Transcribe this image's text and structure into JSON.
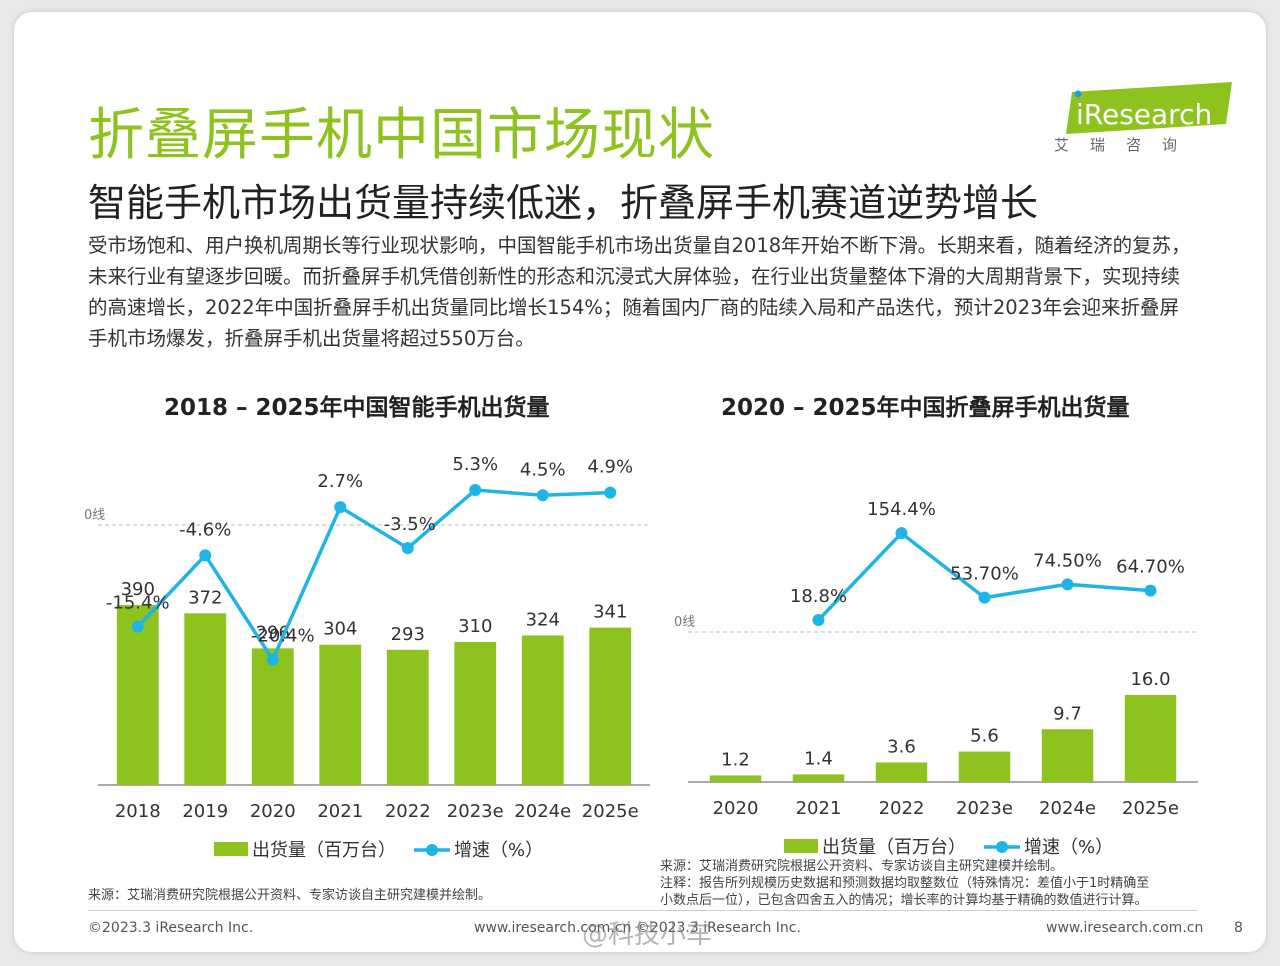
{
  "page": {
    "title": "折叠屏手机中国市场现状",
    "subtitle": "智能手机市场出货量持续低迷，折叠屏手机赛道逆势增长",
    "body": "受市场饱和、用户换机周期长等行业现状影响，中国智能手机市场出货量自2018年开始不断下滑。长期来看，随着经济的复苏，未来行业有望逐步回暖。而折叠屏手机凭借创新性的形态和沉浸式大屏体验，在行业出货量整体下滑的大周期背景下，实现持续的高速增长，2022年中国折叠屏手机出货量同比增长154%；随着国内厂商的陆续入局和产品迭代，预计2023年会迎来折叠屏手机市场爆发，折叠屏手机出货量将超过550万台。",
    "logo_text": "iResearch",
    "logo_cn": "艾瑞咨询",
    "brand_color": "#8dc21f",
    "line_color": "#1fb4e6"
  },
  "chart_data": [
    {
      "type": "bar",
      "title": "2018 – 2025年中国智能手机出货量",
      "categories": [
        "2018",
        "2019",
        "2020",
        "2021",
        "2022",
        "2023e",
        "2024e",
        "2025e"
      ],
      "series": [
        {
          "name": "出货量（百万台）",
          "type": "bar",
          "values": [
            390,
            372,
            296,
            304,
            293,
            310,
            324,
            341
          ],
          "labels": [
            "390",
            "372",
            "296",
            "304",
            "293",
            "310",
            "324",
            "341"
          ]
        },
        {
          "name": "增速（%）",
          "type": "line",
          "values": [
            -15.4,
            -4.6,
            -20.4,
            2.7,
            -3.5,
            5.3,
            4.5,
            4.9
          ],
          "labels": [
            "-15.4%",
            "-4.6%",
            "-20.4%",
            "2.7%",
            "-3.5%",
            "5.3%",
            "4.5%",
            "4.9%"
          ]
        }
      ],
      "zero_label": "0线",
      "legend": "bottom",
      "grid": false
    },
    {
      "type": "bar",
      "title": "2020 – 2025年中国折叠屏手机出货量",
      "categories": [
        "2020",
        "2021",
        "2022",
        "2023e",
        "2024e",
        "2025e"
      ],
      "series": [
        {
          "name": "出货量（百万台）",
          "type": "bar",
          "values": [
            1.2,
            1.4,
            3.6,
            5.6,
            9.7,
            16.0
          ],
          "labels": [
            "1.2",
            "1.4",
            "3.6",
            "5.6",
            "9.7",
            "16.0"
          ]
        },
        {
          "name": "增速（%）",
          "type": "line",
          "values": [
            null,
            18.8,
            154.4,
            53.7,
            74.5,
            64.7
          ],
          "labels": [
            "",
            "18.8%",
            "154.4%",
            "53.70%",
            "74.50%",
            "64.70%"
          ]
        }
      ],
      "zero_label": "0线",
      "legend": "bottom",
      "grid": false
    }
  ],
  "sources": {
    "left": "来源：艾瑞消费研究院根据公开资料、专家访谈自主研究建模并绘制。",
    "right_source": "来源：艾瑞消费研究院根据公开资料、专家访谈自主研究建模并绘制。",
    "right_note_1": "注释：报告所列规模历史数据和预测数据均取整数位（特殊情况：差值小于1时精确至",
    "right_note_2": "小数点后一位），已包含四舍五入的情况；增长率的计算均基于精确的数值进行计算。"
  },
  "footer": {
    "copyright": "©2023.3 iResearch Inc.",
    "center": "www.iresearch.com.cn  ©2023.3 iResearch Inc.",
    "url": "www.iresearch.com.cn",
    "page_number": "8",
    "watermark": "@科技小车"
  }
}
